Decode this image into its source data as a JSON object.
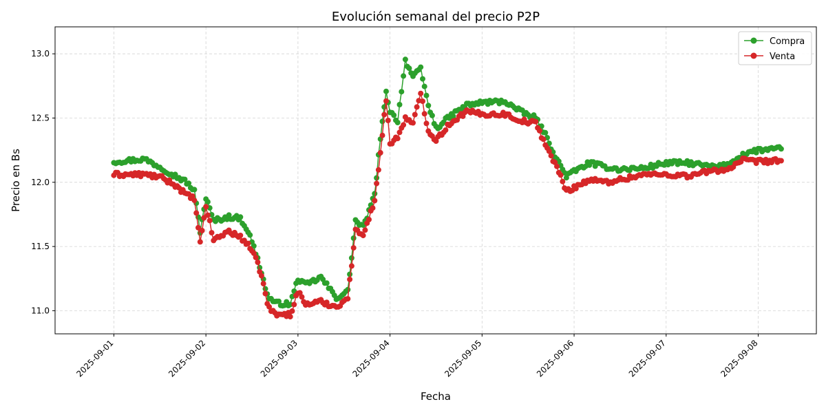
{
  "chart_data": {
    "type": "line",
    "title": "Evolución semanal del precio P2P",
    "xlabel": "Fecha",
    "ylabel": "Precio en Bs",
    "x_type": "date",
    "xlim": [
      "2025-08-31T08:40",
      "2025-09-08T15:10"
    ],
    "ylim": [
      10.82,
      13.21
    ],
    "x_ticks": [
      "2025-09-01",
      "2025-09-02",
      "2025-09-03",
      "2025-09-04",
      "2025-09-05",
      "2025-09-06",
      "2025-09-07",
      "2025-09-08"
    ],
    "y_ticks": [
      11.0,
      11.5,
      12.0,
      12.5,
      13.0
    ],
    "grid": true,
    "legend_position": "top-right",
    "markers": "circle",
    "series": [
      {
        "name": "Compra",
        "color": "#2ca02c",
        "keypoints": [
          [
            "2025-09-01T00:00",
            12.16
          ],
          [
            "2025-09-01T04:00",
            12.17
          ],
          [
            "2025-09-01T08:00",
            12.18
          ],
          [
            "2025-09-01T12:00",
            12.12
          ],
          [
            "2025-09-01T16:00",
            12.05
          ],
          [
            "2025-09-01T19:00",
            12.0
          ],
          [
            "2025-09-01T21:00",
            11.93
          ],
          [
            "2025-09-02T00:00",
            11.88
          ],
          [
            "2025-09-01T22:30",
            11.62
          ],
          [
            "2025-09-02T02:00",
            11.7
          ],
          [
            "2025-09-02T06:00",
            11.73
          ],
          [
            "2025-09-02T09:00",
            11.72
          ],
          [
            "2025-09-02T11:00",
            11.62
          ],
          [
            "2025-09-02T13:00",
            11.45
          ],
          [
            "2025-09-02T14:30",
            11.3
          ],
          [
            "2025-09-02T16:00",
            11.12
          ],
          [
            "2025-09-02T18:00",
            11.06
          ],
          [
            "2025-09-02T22:00",
            11.05
          ],
          [
            "2025-09-03T00:00",
            11.25
          ],
          [
            "2025-09-03T02:00",
            11.2
          ],
          [
            "2025-09-03T06:00",
            11.26
          ],
          [
            "2025-09-03T10:00",
            11.1
          ],
          [
            "2025-09-03T13:00",
            11.15
          ],
          [
            "2025-09-03T15:00",
            11.7
          ],
          [
            "2025-09-03T17:00",
            11.65
          ],
          [
            "2025-09-03T20:00",
            11.9
          ],
          [
            "2025-09-03T21:00",
            12.2
          ],
          [
            "2025-09-03T23:00",
            12.72
          ],
          [
            "2025-09-04T00:00",
            12.55
          ],
          [
            "2025-09-04T02:00",
            12.48
          ],
          [
            "2025-09-04T04:00",
            12.95
          ],
          [
            "2025-09-04T06:00",
            12.82
          ],
          [
            "2025-09-04T08:00",
            12.88
          ],
          [
            "2025-09-04T10:00",
            12.6
          ],
          [
            "2025-09-04T12:00",
            12.42
          ],
          [
            "2025-09-04T16:00",
            12.52
          ],
          [
            "2025-09-04T20:00",
            12.6
          ],
          [
            "2025-09-05T00:00",
            12.62
          ],
          [
            "2025-09-05T06:00",
            12.63
          ],
          [
            "2025-09-05T10:00",
            12.55
          ],
          [
            "2025-09-05T14:00",
            12.5
          ],
          [
            "2025-09-05T16:00",
            12.4
          ],
          [
            "2025-09-05T20:00",
            12.15
          ],
          [
            "2025-09-05T22:00",
            12.05
          ],
          [
            "2025-09-06T04:00",
            12.15
          ],
          [
            "2025-09-06T08:00",
            12.12
          ],
          [
            "2025-09-06T12:00",
            12.1
          ],
          [
            "2025-09-06T18:00",
            12.11
          ],
          [
            "2025-09-07T00:00",
            12.15
          ],
          [
            "2025-09-07T06:00",
            12.15
          ],
          [
            "2025-09-07T12:00",
            12.12
          ],
          [
            "2025-09-07T16:00",
            12.13
          ],
          [
            "2025-09-07T20:00",
            12.22
          ],
          [
            "2025-09-08T00:00",
            12.25
          ],
          [
            "2025-09-08T06:00",
            12.26
          ]
        ]
      },
      {
        "name": "Venta",
        "color": "#d62728",
        "keypoints": [
          [
            "2025-09-01T00:00",
            12.06
          ],
          [
            "2025-09-01T04:00",
            12.06
          ],
          [
            "2025-09-01T08:00",
            12.06
          ],
          [
            "2025-09-01T12:00",
            12.04
          ],
          [
            "2025-09-01T16:00",
            11.98
          ],
          [
            "2025-09-01T19:00",
            11.9
          ],
          [
            "2025-09-01T21:00",
            11.87
          ],
          [
            "2025-09-02T00:00",
            11.82
          ],
          [
            "2025-09-01T22:30",
            11.52
          ],
          [
            "2025-09-02T02:00",
            11.55
          ],
          [
            "2025-09-02T06:00",
            11.62
          ],
          [
            "2025-09-02T09:00",
            11.57
          ],
          [
            "2025-09-02T11:00",
            11.52
          ],
          [
            "2025-09-02T13:00",
            11.4
          ],
          [
            "2025-09-02T14:30",
            11.28
          ],
          [
            "2025-09-02T16:00",
            11.05
          ],
          [
            "2025-09-02T18:00",
            10.97
          ],
          [
            "2025-09-02T22:00",
            10.97
          ],
          [
            "2025-09-03T00:00",
            11.15
          ],
          [
            "2025-09-03T02:00",
            11.05
          ],
          [
            "2025-09-03T06:00",
            11.07
          ],
          [
            "2025-09-03T10:00",
            11.03
          ],
          [
            "2025-09-03T13:00",
            11.1
          ],
          [
            "2025-09-03T15:00",
            11.62
          ],
          [
            "2025-09-03T17:00",
            11.6
          ],
          [
            "2025-09-03T20:00",
            11.85
          ],
          [
            "2025-09-03T21:00",
            12.1
          ],
          [
            "2025-09-03T23:00",
            12.65
          ],
          [
            "2025-09-04T00:00",
            12.3
          ],
          [
            "2025-09-04T02:00",
            12.35
          ],
          [
            "2025-09-04T04:00",
            12.5
          ],
          [
            "2025-09-04T06:00",
            12.45
          ],
          [
            "2025-09-04T08:00",
            12.7
          ],
          [
            "2025-09-04T10:00",
            12.4
          ],
          [
            "2025-09-04T12:00",
            12.33
          ],
          [
            "2025-09-04T16:00",
            12.47
          ],
          [
            "2025-09-04T20:00",
            12.55
          ],
          [
            "2025-09-05T00:00",
            12.53
          ],
          [
            "2025-09-05T06:00",
            12.53
          ],
          [
            "2025-09-05T10:00",
            12.48
          ],
          [
            "2025-09-05T14:00",
            12.46
          ],
          [
            "2025-09-05T16:00",
            12.33
          ],
          [
            "2025-09-05T20:00",
            12.08
          ],
          [
            "2025-09-05T22:00",
            11.93
          ],
          [
            "2025-09-06T04:00",
            12.02
          ],
          [
            "2025-09-06T08:00",
            12.0
          ],
          [
            "2025-09-06T12:00",
            12.02
          ],
          [
            "2025-09-06T18:00",
            12.06
          ],
          [
            "2025-09-07T00:00",
            12.06
          ],
          [
            "2025-09-07T06:00",
            12.05
          ],
          [
            "2025-09-07T12:00",
            12.09
          ],
          [
            "2025-09-07T16:00",
            12.1
          ],
          [
            "2025-09-07T20:00",
            12.17
          ],
          [
            "2025-09-08T00:00",
            12.16
          ],
          [
            "2025-09-08T06:00",
            12.17
          ]
        ]
      }
    ]
  }
}
